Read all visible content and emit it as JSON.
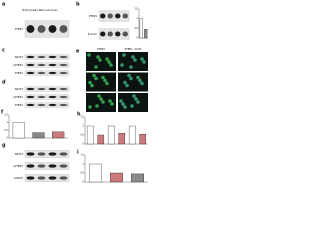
{
  "blots": [
    {
      "label": "a",
      "title": "Biotinylated RNA pull down",
      "rows": [
        "PTBP1"
      ]
    },
    {
      "label": "b",
      "rows": [
        "PTBP1",
        "β-actin"
      ]
    },
    {
      "label": "c",
      "rows": [
        "SRSF3",
        "pPTBP1",
        "PTBP1"
      ]
    },
    {
      "label": "d",
      "rows": [
        "SRSF3",
        "pPTBP1",
        "PTBP1"
      ]
    },
    {
      "label": "g",
      "rows": [
        "SRSF3",
        "pPTBP1",
        "GAPDH"
      ]
    }
  ],
  "images": {
    "label": "e",
    "columns": [
      "PTBP1",
      "PTBP1 / DAPI"
    ]
  },
  "chart_data": [
    {
      "type": "bar",
      "values": [
        1,
        0.45
      ],
      "colors": [
        "#ffffff",
        "#8a8a8a"
      ],
      "ylim": [
        0,
        1.5
      ],
      "yticks": [
        0,
        0.5,
        1,
        1.5
      ]
    },
    {
      "type": "bar",
      "label": "f",
      "values": [
        1,
        0.35,
        0.4
      ],
      "colors": [
        "#ffffff",
        "#8a8a8a",
        "#c97a7a"
      ],
      "ylim": [
        0,
        1.5
      ],
      "yticks": [
        0,
        0.5,
        1,
        1.5
      ]
    },
    {
      "type": "bar",
      "label": "h",
      "values": [
        1,
        0.5,
        1,
        0.6,
        1,
        0.55
      ],
      "colors": [
        "#ffffff",
        "#c97a7a",
        "#ffffff",
        "#c97a7a",
        "#ffffff",
        "#c97a7a"
      ],
      "ylim": [
        0,
        1.5
      ],
      "yticks": [
        0,
        0.5,
        1,
        1.5
      ]
    },
    {
      "type": "bar",
      "label": "i",
      "values": [
        1,
        0.5,
        0.45
      ],
      "colors": [
        "#ffffff",
        "#c97a7a",
        "#8a8a8a"
      ],
      "ylim": [
        0,
        1.5
      ],
      "yticks": [
        0,
        0.5,
        1,
        1.5
      ]
    }
  ]
}
